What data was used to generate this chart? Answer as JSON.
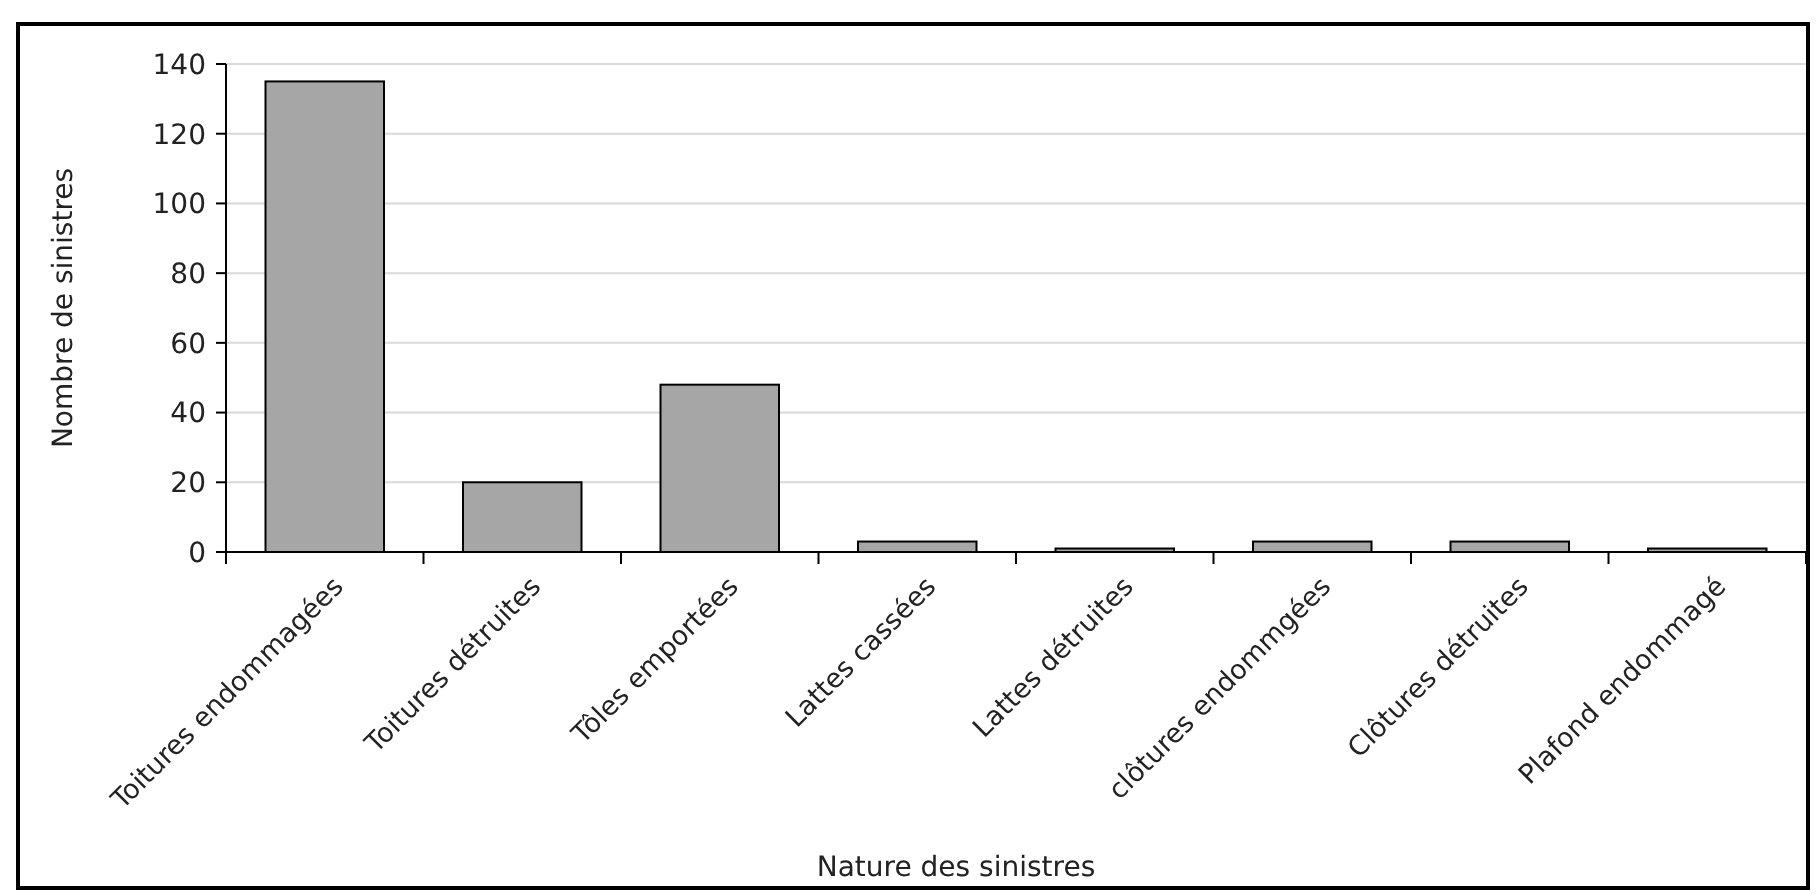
{
  "chart_data": {
    "type": "bar",
    "xlabel": "Nature des sinistres",
    "ylabel": "Nombre de sinistres",
    "categories": [
      "Toitures endommagées",
      "Toitures détruites",
      "Tôles emportées",
      "Lattes cassées",
      "Lattes détruites",
      "clôtures endommgées",
      "Clôtures détruites",
      "Plafond endommagé"
    ],
    "values": [
      135,
      20,
      48,
      3,
      1,
      3,
      3,
      1
    ],
    "color": "#a6a6a6",
    "ylim": [
      0,
      140
    ],
    "yticks": [
      0,
      20,
      40,
      60,
      80,
      100,
      120,
      140
    ],
    "grid": "y"
  }
}
